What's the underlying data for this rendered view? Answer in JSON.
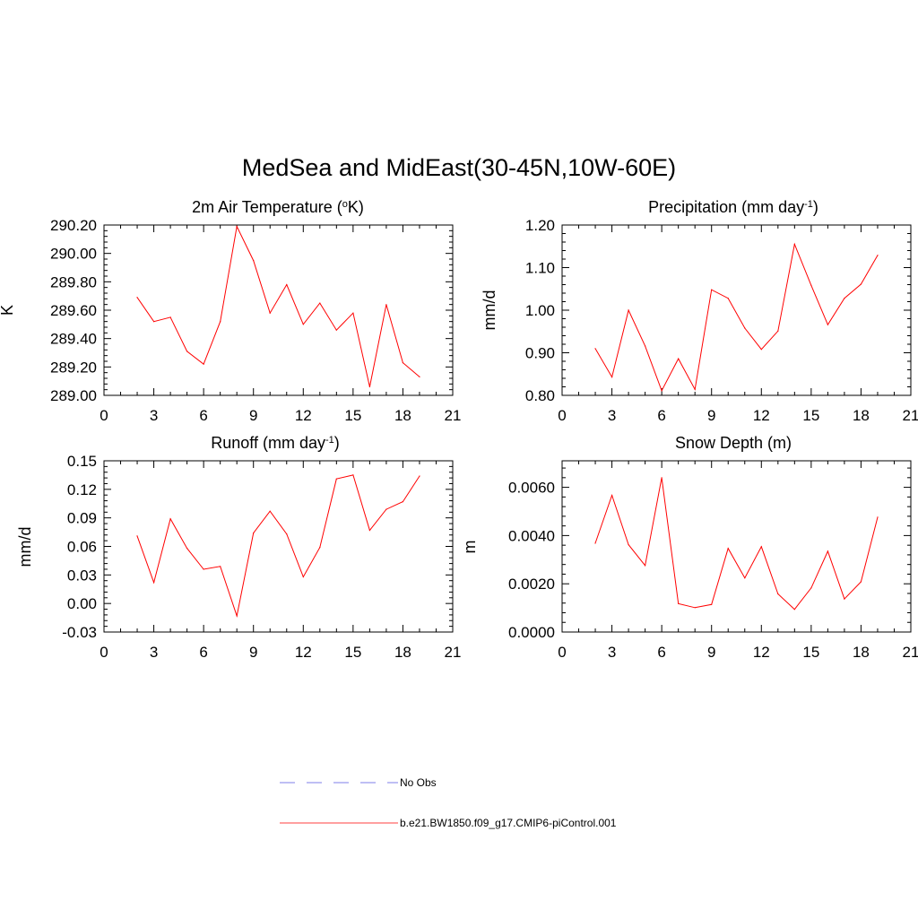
{
  "figure": {
    "title": "MedSea and MidEast(30-45N,10W-60E)"
  },
  "legend": {
    "items": [
      {
        "label": "No Obs",
        "color": "#9999ee",
        "style": "dashed"
      },
      {
        "label": "b.e21.BW1850.f09_g17.CMIP6-piControl.001",
        "color": "#ff6666",
        "style": "solid"
      }
    ]
  },
  "chart_data": [
    {
      "type": "line",
      "title_main": "2m Air Temperature (",
      "title_sup": "o",
      "title_end": "K)",
      "ylabel": "K",
      "xlabel": "",
      "xlim": [
        0,
        21
      ],
      "ylim": [
        289.0,
        290.2
      ],
      "xticks": [
        0,
        3,
        6,
        9,
        12,
        15,
        18,
        21
      ],
      "yticks": [
        289.0,
        289.2,
        289.4,
        289.6,
        289.8,
        290.0,
        290.2
      ],
      "ytick_labels": [
        "289.00",
        "289.20",
        "289.40",
        "289.60",
        "289.80",
        "290.00",
        "290.20"
      ],
      "series": [
        {
          "name": "b.e21.BW1850.f09_g17.CMIP6-piControl.001",
          "color": "#ff0000",
          "x": [
            2,
            3,
            4,
            5,
            6,
            7,
            8,
            9,
            10,
            11,
            12,
            13,
            14,
            15,
            16,
            17,
            18,
            19
          ],
          "y": [
            289.69,
            289.52,
            289.55,
            289.31,
            289.22,
            289.52,
            290.19,
            289.95,
            289.58,
            289.78,
            289.5,
            289.65,
            289.46,
            289.58,
            289.06,
            289.64,
            289.23,
            289.13
          ]
        }
      ]
    },
    {
      "type": "line",
      "title_main": "Precipitation (mm day",
      "title_sup": "-1",
      "title_end": ")",
      "ylabel": "mm/d",
      "xlabel": "",
      "xlim": [
        0,
        21
      ],
      "ylim": [
        0.8,
        1.2
      ],
      "xticks": [
        0,
        3,
        6,
        9,
        12,
        15,
        18,
        21
      ],
      "yticks": [
        0.8,
        0.9,
        1.0,
        1.1,
        1.2
      ],
      "ytick_labels": [
        "0.80",
        "0.90",
        "1.00",
        "1.10",
        "1.20"
      ],
      "series": [
        {
          "name": "b.e21.BW1850.f09_g17.CMIP6-piControl.001",
          "color": "#ff0000",
          "x": [
            2,
            3,
            4,
            5,
            6,
            7,
            8,
            9,
            10,
            11,
            12,
            13,
            14,
            15,
            16,
            17,
            18,
            19
          ],
          "y": [
            0.91,
            0.843,
            1.0,
            0.916,
            0.811,
            0.886,
            0.814,
            1.048,
            1.028,
            0.958,
            0.908,
            0.951,
            1.155,
            1.058,
            0.966,
            1.028,
            1.061,
            1.129
          ]
        }
      ]
    },
    {
      "type": "line",
      "title_main": "Runoff (mm day",
      "title_sup": "-1",
      "title_end": ")",
      "ylabel": "mm/d",
      "xlabel": "",
      "xlim": [
        0,
        21
      ],
      "ylim": [
        -0.03,
        0.15
      ],
      "xticks": [
        0,
        3,
        6,
        9,
        12,
        15,
        18,
        21
      ],
      "yticks": [
        -0.03,
        0.0,
        0.03,
        0.06,
        0.09,
        0.12,
        0.15
      ],
      "ytick_labels": [
        "-0.03",
        "0.00",
        "0.03",
        "0.06",
        "0.09",
        "0.12",
        "0.15"
      ],
      "series": [
        {
          "name": "b.e21.BW1850.f09_g17.CMIP6-piControl.001",
          "color": "#ff0000",
          "x": [
            2,
            3,
            4,
            5,
            6,
            7,
            8,
            9,
            10,
            11,
            12,
            13,
            14,
            15,
            16,
            17,
            18,
            19
          ],
          "y": [
            0.071,
            0.022,
            0.089,
            0.058,
            0.036,
            0.039,
            -0.013,
            0.074,
            0.097,
            0.073,
            0.028,
            0.059,
            0.131,
            0.135,
            0.077,
            0.099,
            0.107,
            0.134
          ]
        }
      ]
    },
    {
      "type": "line",
      "title_main": "Snow Depth (m)",
      "title_sup": "",
      "title_end": "",
      "ylabel": "m",
      "xlabel": "",
      "xlim": [
        0,
        21
      ],
      "ylim": [
        0.0,
        0.0071
      ],
      "xticks": [
        0,
        3,
        6,
        9,
        12,
        15,
        18,
        21
      ],
      "yticks": [
        0.0,
        0.002,
        0.004,
        0.006
      ],
      "ytick_labels": [
        "0.0000",
        "0.0020",
        "0.0040",
        "0.0060"
      ],
      "series": [
        {
          "name": "b.e21.BW1850.f09_g17.CMIP6-piControl.001",
          "color": "#ff0000",
          "x": [
            2,
            3,
            4,
            5,
            6,
            7,
            8,
            9,
            10,
            11,
            12,
            13,
            14,
            15,
            16,
            17,
            18,
            19
          ],
          "y": [
            0.00368,
            0.00567,
            0.00362,
            0.00276,
            0.0064,
            0.00118,
            0.00101,
            0.00114,
            0.00347,
            0.00224,
            0.00354,
            0.00158,
            0.00094,
            0.00183,
            0.00335,
            0.00137,
            0.00208,
            0.00476
          ]
        }
      ]
    }
  ]
}
